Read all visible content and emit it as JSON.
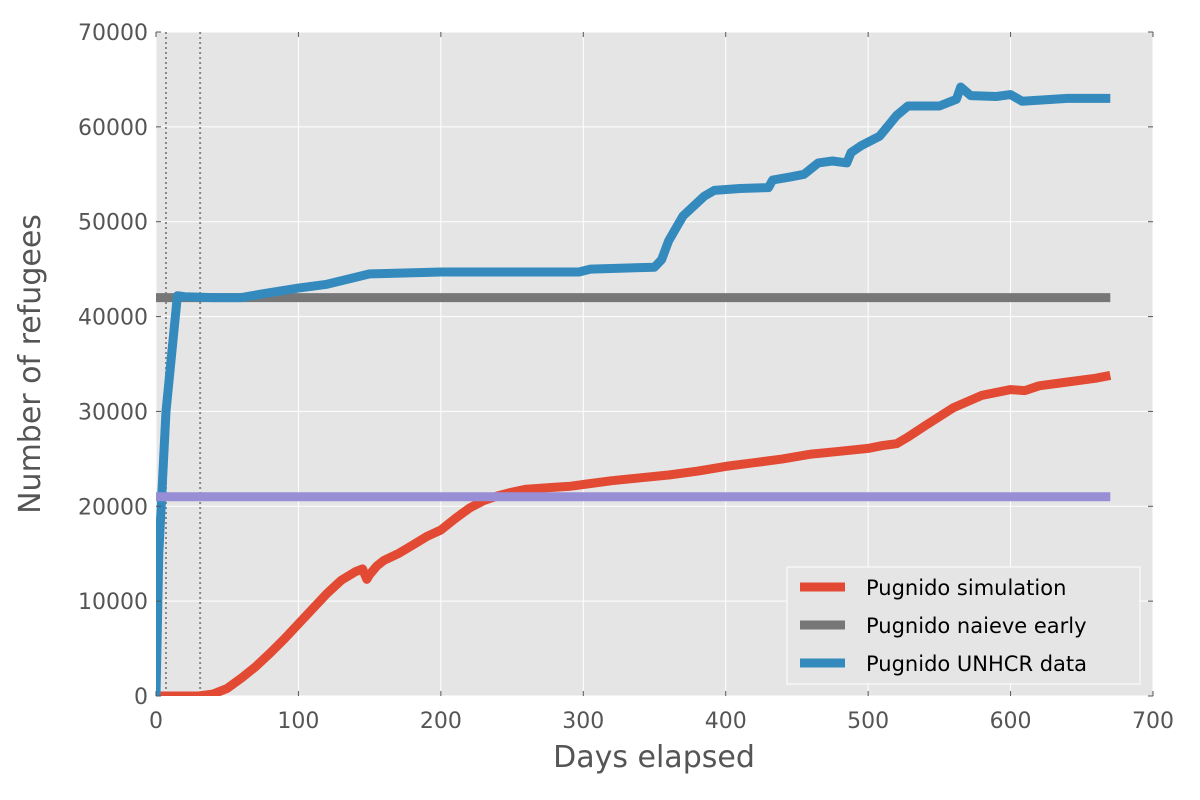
{
  "chart_data": {
    "type": "line",
    "title": "",
    "xlabel": "Days elapsed",
    "ylabel": "Number of refugees",
    "xlim": [
      0,
      700
    ],
    "ylim": [
      0,
      70000
    ],
    "x_ticks": [
      0,
      100,
      200,
      300,
      400,
      500,
      600,
      700
    ],
    "y_ticks": [
      0,
      10000,
      20000,
      30000,
      40000,
      50000,
      60000,
      70000
    ],
    "grid": true,
    "legend_position": "lower-right",
    "vertical_markers": [
      7,
      31
    ],
    "series": [
      {
        "name": "Pugnido simulation",
        "color": "#E24A33",
        "in_legend": true,
        "x": [
          0,
          10,
          20,
          30,
          40,
          50,
          60,
          70,
          80,
          90,
          100,
          110,
          120,
          130,
          140,
          145,
          148,
          150,
          155,
          160,
          170,
          180,
          190,
          200,
          210,
          220,
          230,
          240,
          250,
          260,
          270,
          280,
          290,
          300,
          320,
          340,
          360,
          380,
          400,
          420,
          440,
          460,
          480,
          500,
          510,
          520,
          528,
          540,
          560,
          580,
          600,
          610,
          620,
          640,
          660,
          670
        ],
        "values": [
          0,
          0,
          0,
          0,
          200,
          800,
          1900,
          3100,
          4500,
          6000,
          7600,
          9200,
          10800,
          12200,
          13100,
          13400,
          12300,
          12800,
          13700,
          14300,
          15000,
          15900,
          16800,
          17500,
          18700,
          19800,
          20600,
          21100,
          21500,
          21800,
          21900,
          22000,
          22100,
          22300,
          22700,
          23000,
          23300,
          23700,
          24200,
          24600,
          25000,
          25500,
          25800,
          26100,
          26400,
          26600,
          27300,
          28500,
          30400,
          31700,
          32300,
          32200,
          32700,
          33100,
          33500,
          33800
        ]
      },
      {
        "name": "Pugnido naieve early",
        "color": "#777777",
        "in_legend": true,
        "x": [
          0,
          670
        ],
        "values": [
          42000,
          42000
        ]
      },
      {
        "name": "Pugnido UNHCR data",
        "color": "#348ABD",
        "in_legend": true,
        "x": [
          0,
          2,
          7,
          15,
          20,
          40,
          60,
          75,
          100,
          120,
          150,
          200,
          250,
          297,
          305,
          350,
          355,
          360,
          370,
          385,
          392,
          410,
          430,
          433,
          445,
          455,
          465,
          475,
          485,
          488,
          495,
          508,
          520,
          528,
          550,
          562,
          565,
          572,
          590,
          600,
          608,
          640,
          660,
          670
        ],
        "values": [
          0,
          15000,
          30000,
          42200,
          42100,
          42000,
          42000,
          42400,
          43000,
          43400,
          44500,
          44700,
          44700,
          44700,
          45000,
          45200,
          46000,
          48000,
          50600,
          52700,
          53300,
          53500,
          53600,
          54400,
          54700,
          55000,
          56200,
          56400,
          56200,
          57300,
          58000,
          59000,
          61200,
          62200,
          62200,
          62900,
          64200,
          63300,
          63200,
          63400,
          62700,
          63000,
          63000,
          63000
        ]
      },
      {
        "name": "",
        "color": "#988ED5",
        "in_legend": false,
        "x": [
          0,
          670
        ],
        "values": [
          21000,
          21000
        ]
      }
    ]
  }
}
